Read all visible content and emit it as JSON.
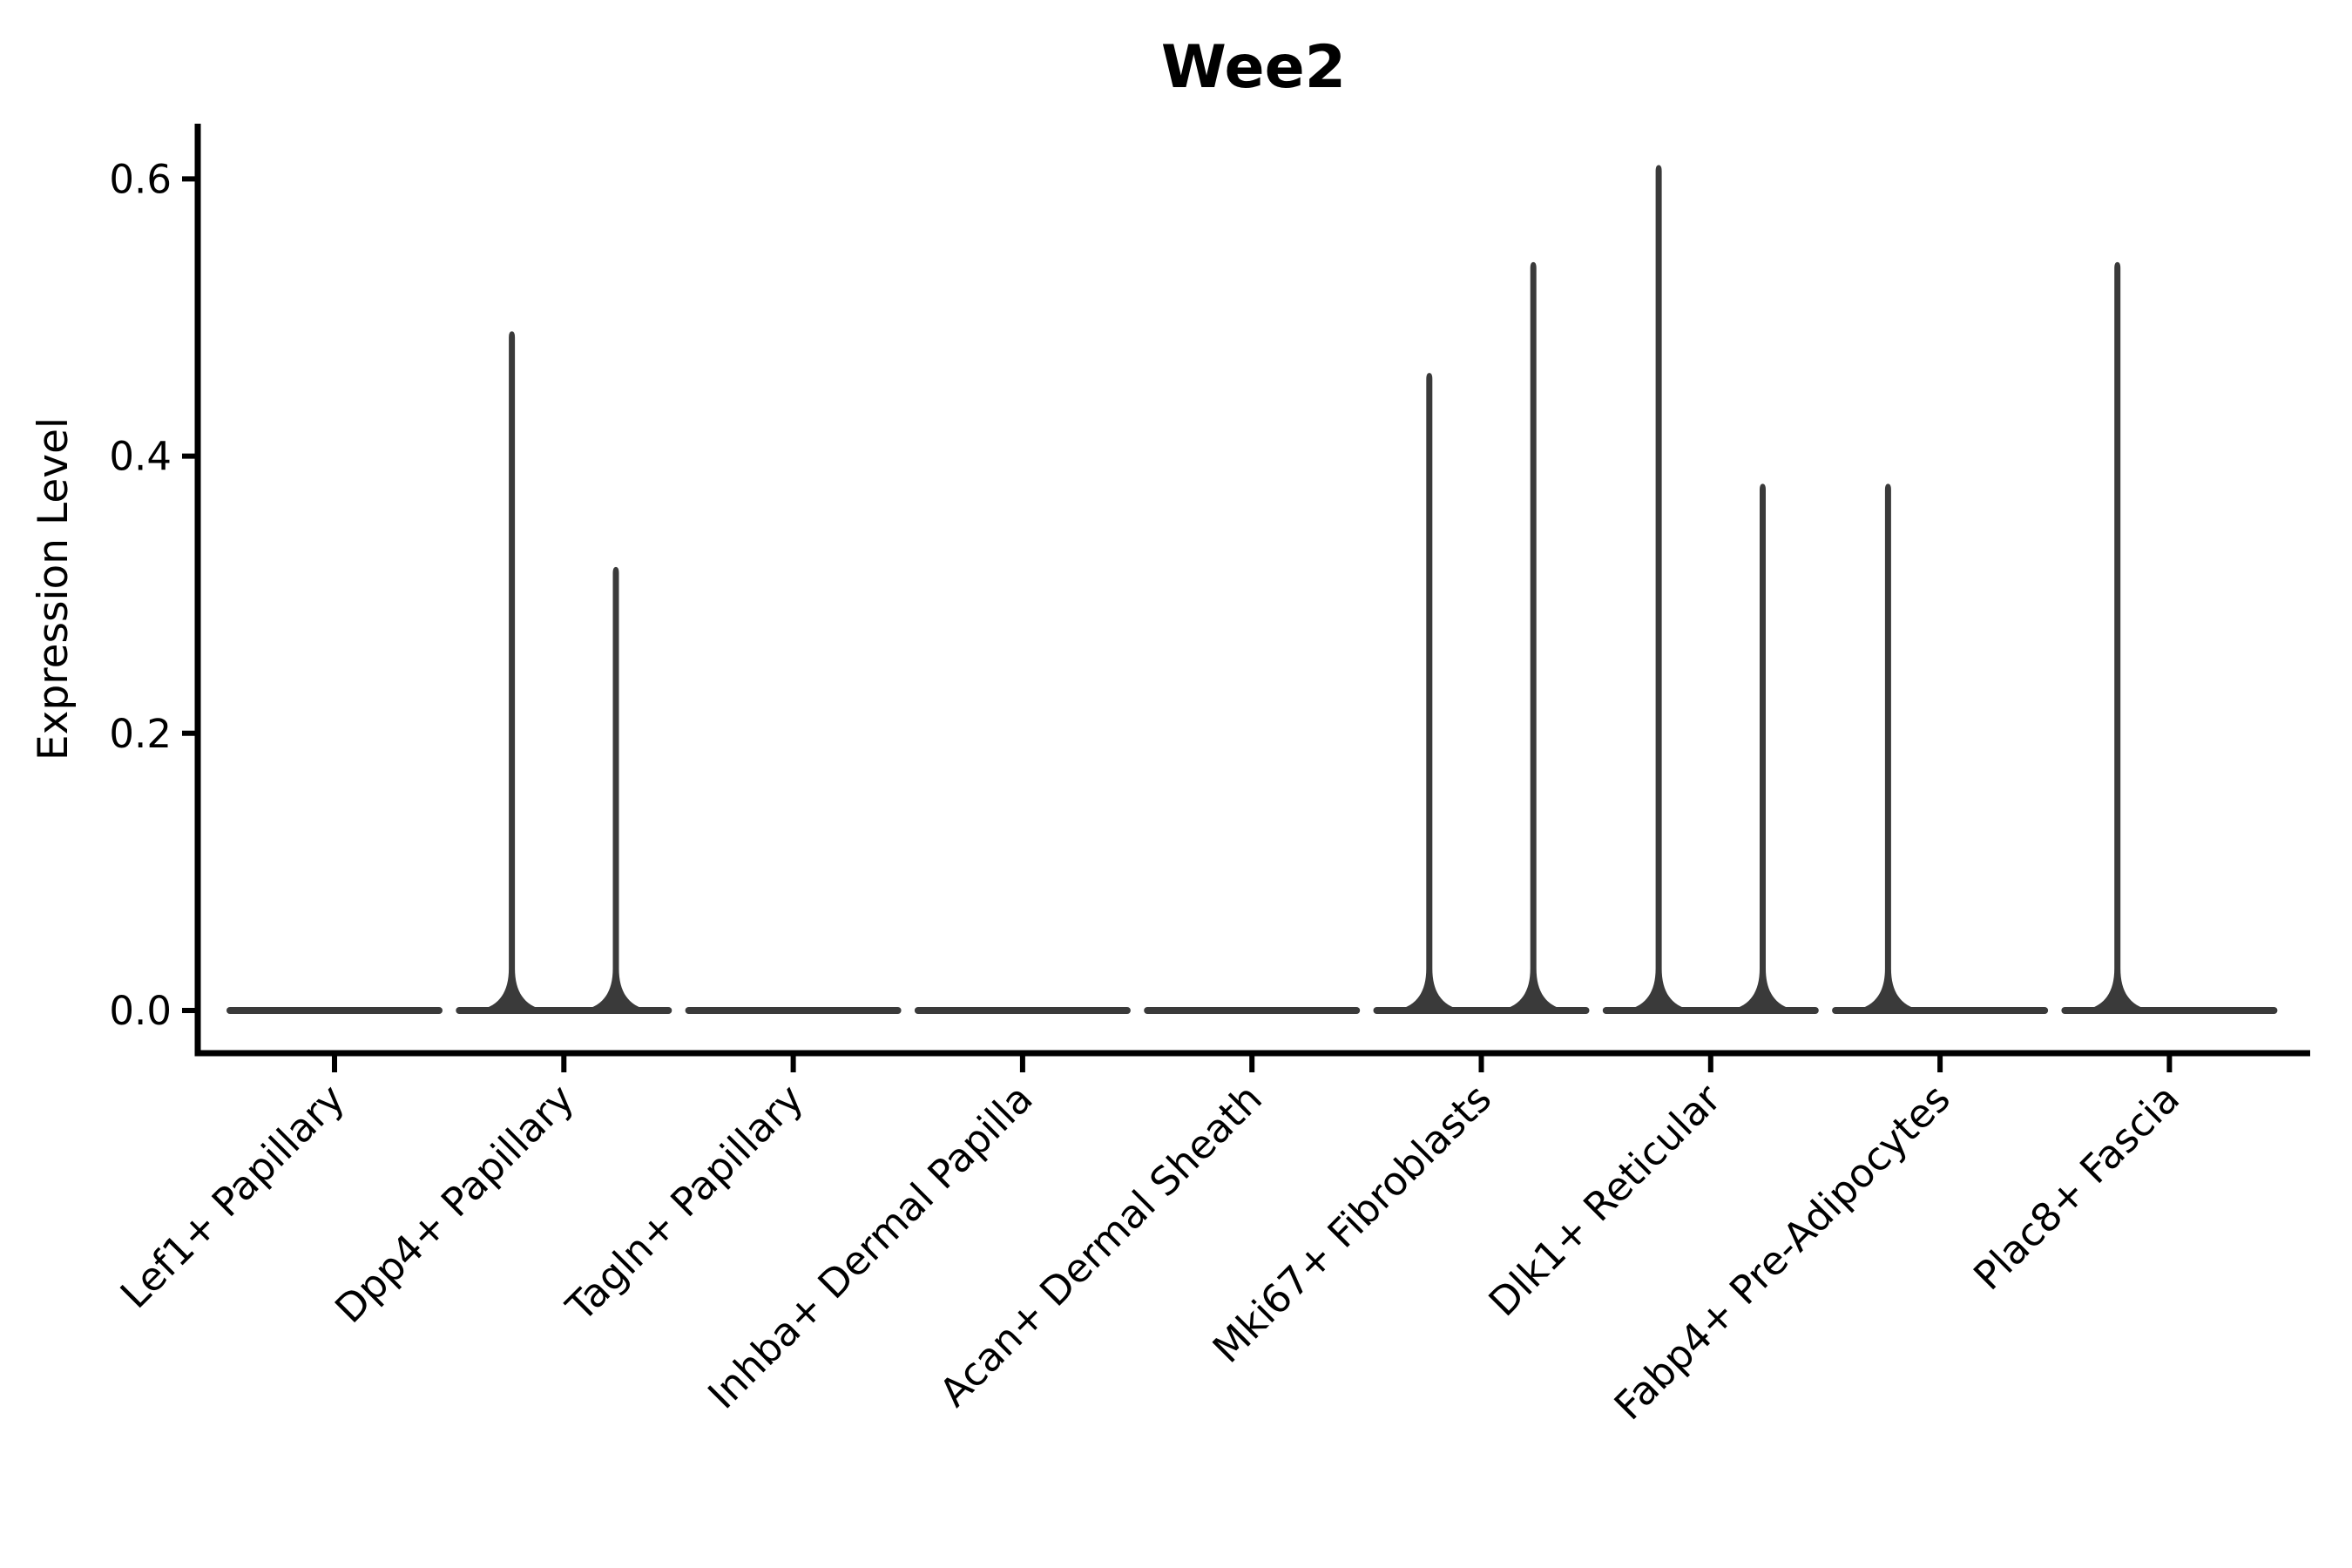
{
  "title": "Wee2",
  "chart_data": {
    "type": "violin",
    "title": "Wee2",
    "ylabel": "Expression Level",
    "xlabel": "",
    "ytick_labels": [
      "0.0",
      "0.2",
      "0.4",
      "0.6"
    ],
    "yticks": [
      0.0,
      0.2,
      0.4,
      0.6
    ],
    "ylim": [
      -0.03,
      0.64
    ],
    "grid": false,
    "legend": false,
    "violin_color": "#3a3a3a",
    "violins_per_category": 2,
    "baseline_value": 0.0,
    "categories": [
      "Lef1+ Papillary",
      "Dpp4+ Papillary",
      "Tagln+ Papillary",
      "Inhba+ Dermal Papilla",
      "Acan+ Dermal Sheath",
      "Mki67+ Fibroblasts",
      "Dlk1+ Reticular",
      "Fabp4+ Pre-Adipocytes",
      "Plac8+ Fascia"
    ],
    "violins": [
      {
        "category": "Lef1+ Papillary",
        "spikes": []
      },
      {
        "category": "Dpp4+ Papillary",
        "spikes": [
          {
            "position": "left",
            "max": 0.49
          },
          {
            "position": "right",
            "max": 0.32
          }
        ]
      },
      {
        "category": "Tagln+ Papillary",
        "spikes": []
      },
      {
        "category": "Inhba+ Dermal Papilla",
        "spikes": []
      },
      {
        "category": "Acan+ Dermal Sheath",
        "spikes": []
      },
      {
        "category": "Mki67+ Fibroblasts",
        "spikes": [
          {
            "position": "left",
            "max": 0.46
          },
          {
            "position": "right",
            "max": 0.54
          }
        ]
      },
      {
        "category": "Dlk1+ Reticular",
        "spikes": [
          {
            "position": "left",
            "max": 0.61
          },
          {
            "position": "right",
            "max": 0.38
          }
        ]
      },
      {
        "category": "Fabp4+ Pre-Adipocytes",
        "spikes": [
          {
            "position": "left",
            "max": 0.38
          }
        ]
      },
      {
        "category": "Plac8+ Fascia",
        "spikes": [
          {
            "position": "left",
            "max": 0.54
          }
        ]
      }
    ]
  }
}
